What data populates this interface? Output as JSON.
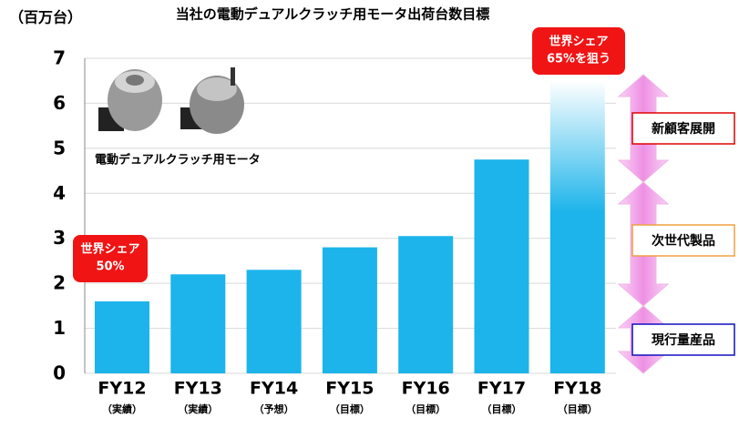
{
  "chart_data": {
    "type": "bar",
    "title": "当社の電動デュアルクラッチ用モータ出荷台数目標",
    "y_unit": "（百万台）",
    "categories": [
      "FY12",
      "FY13",
      "FY14",
      "FY15",
      "FY16",
      "FY17",
      "FY18"
    ],
    "sublabels": [
      "（実績）",
      "（実績）",
      "（予想）",
      "（目標）",
      "（目標）",
      "（目標）",
      "（目標）"
    ],
    "values": [
      1.6,
      2.2,
      2.3,
      2.8,
      3.05,
      4.75,
      6.5
    ],
    "color": "#1cb4ea",
    "ylim": [
      0,
      7
    ],
    "yticks": [
      0,
      1,
      2,
      3,
      4,
      5,
      6,
      7
    ],
    "grid": true,
    "callouts": [
      {
        "lines": [
          "世界シェア",
          "50%"
        ]
      },
      {
        "lines": [
          "世界シェア",
          "65%を狙う"
        ]
      }
    ],
    "image_caption": "電動デュアルクラッチ用モータ",
    "segments": [
      "新顧客展開",
      "次世代製品",
      "現行量産品"
    ]
  }
}
